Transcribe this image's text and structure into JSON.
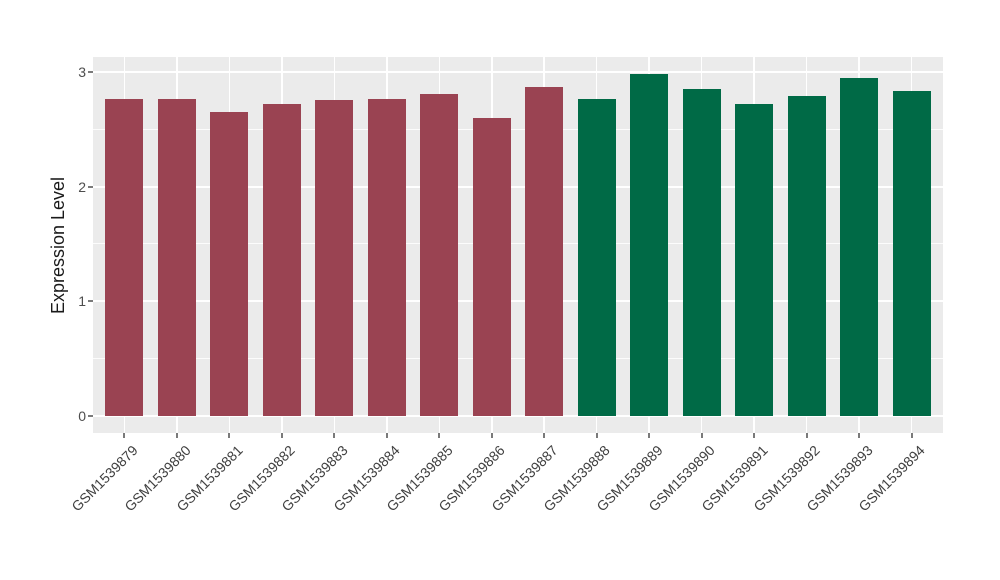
{
  "figure": {
    "background": "#ffffff",
    "panel_background": "#ebebeb",
    "grid_color": "#ffffff",
    "tick_color": "#7a7a7a",
    "axis_text_color": "#4d4d4d",
    "axis_title_color": "#1a1a1a"
  },
  "chart_data": {
    "type": "bar",
    "title": "",
    "xlabel": "",
    "ylabel": "Expression Level",
    "categories": [
      "GSM1539879",
      "GSM1539880",
      "GSM1539881",
      "GSM1539882",
      "GSM1539883",
      "GSM1539884",
      "GSM1539885",
      "GSM1539886",
      "GSM1539887",
      "GSM1539888",
      "GSM1539889",
      "GSM1539890",
      "GSM1539891",
      "GSM1539892",
      "GSM1539893",
      "GSM1539894"
    ],
    "values": [
      2.77,
      2.77,
      2.65,
      2.72,
      2.76,
      2.77,
      2.81,
      2.6,
      2.87,
      2.77,
      2.98,
      2.85,
      2.72,
      2.79,
      2.95,
      2.84
    ],
    "bar_colors": [
      "#9a4352",
      "#9a4352",
      "#9a4352",
      "#9a4352",
      "#9a4352",
      "#9a4352",
      "#9a4352",
      "#9a4352",
      "#9a4352",
      "#006a46",
      "#006a46",
      "#006a46",
      "#006a46",
      "#006a46",
      "#006a46",
      "#006a46"
    ],
    "group_colors": {
      "maroon_group": "#9a4352",
      "green_group": "#006a46"
    },
    "yticks": [
      "0",
      "1",
      "2",
      "3"
    ],
    "ytick_values": [
      0,
      1,
      2,
      3
    ],
    "minor_gridline_values": [
      0.5,
      1.5,
      2.5
    ],
    "ylim": [
      -0.16,
      3.13
    ],
    "grid": true,
    "legend": "none"
  }
}
